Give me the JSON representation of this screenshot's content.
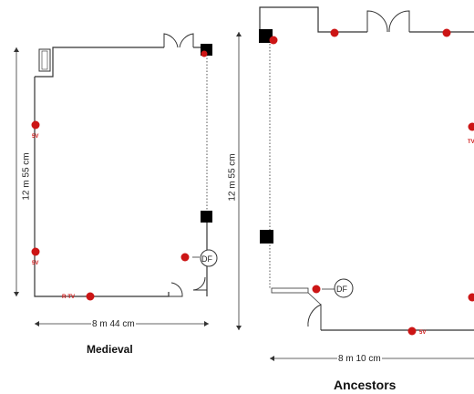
{
  "plans": {
    "medieval": {
      "caption": "Medieval",
      "width_label": "8 m 44 cm",
      "height_label": "12 m 55 cm",
      "fixture_labels": [
        "5V",
        "5V",
        "R-TV",
        "DF"
      ]
    },
    "ancestors": {
      "caption": "Ancestors",
      "width_label": "8 m 10 cm",
      "height_label": "12 m 55 cm",
      "fixture_labels": [
        "TV",
        "5V",
        "DF"
      ]
    }
  },
  "colors": {
    "wall": "#333333",
    "outlet": "#cc1515",
    "column": "#000000"
  }
}
